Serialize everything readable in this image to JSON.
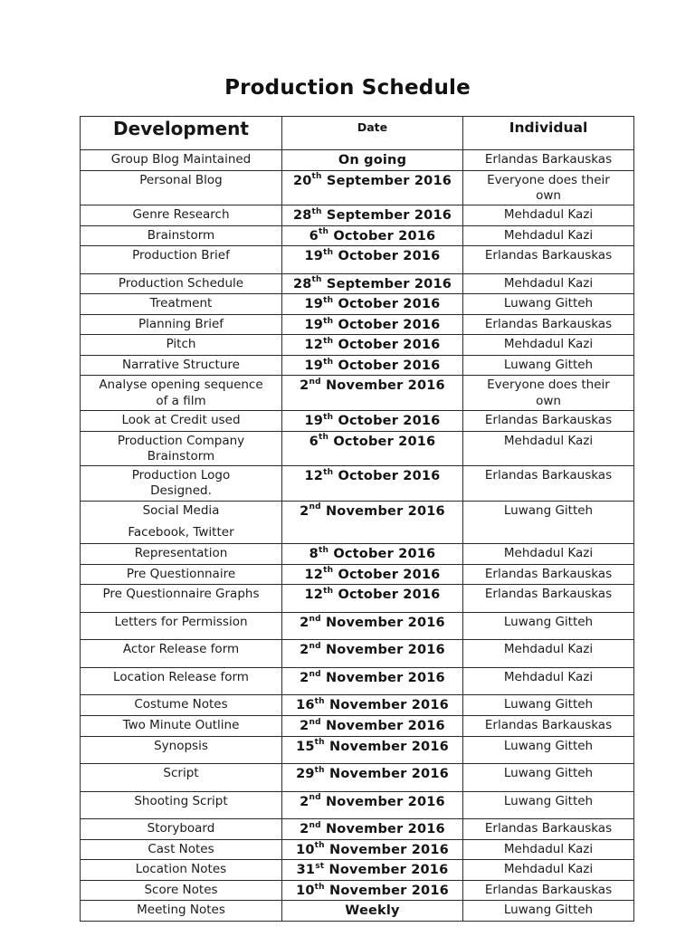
{
  "page_title": "Production Schedule",
  "colors": {
    "text": "#1b1b1b",
    "border": "#2b2b2b",
    "background": "#ffffff"
  },
  "table": {
    "columns": [
      {
        "label": "Development"
      },
      {
        "label": "Date"
      },
      {
        "label": "Individual"
      }
    ],
    "rows": [
      {
        "development": [
          "Group Blog Maintained"
        ],
        "date": {
          "text": "On going"
        },
        "individual": [
          "Erlandas Barkauskas"
        ]
      },
      {
        "development": [
          "Personal Blog"
        ],
        "date": {
          "day": "20",
          "ord": "th",
          "rest": " September 2016"
        },
        "individual": [
          "Everyone does their",
          "own"
        ]
      },
      {
        "development": [
          "Genre Research"
        ],
        "date": {
          "day": "28",
          "ord": "th",
          "rest": " September 2016"
        },
        "individual": [
          "Mehdadul Kazi"
        ]
      },
      {
        "development": [
          "Brainstorm"
        ],
        "date": {
          "day": "6",
          "ord": "th",
          "rest": " October 2016"
        },
        "individual": [
          "Mehdadul Kazi"
        ]
      },
      {
        "development": [
          "Production Brief"
        ],
        "date": {
          "day": "19",
          "ord": "th",
          "rest": " October 2016"
        },
        "individual": [
          "Erlandas Barkauskas"
        ],
        "spacer": true
      },
      {
        "development": [
          "Production Schedule"
        ],
        "date": {
          "day": "28",
          "ord": "th",
          "rest": " September 2016"
        },
        "individual": [
          "Mehdadul Kazi"
        ]
      },
      {
        "development": [
          "Treatment"
        ],
        "date": {
          "day": "19",
          "ord": "th",
          "rest": " October 2016"
        },
        "individual": [
          "Luwang Gitteh"
        ]
      },
      {
        "development": [
          "Planning Brief"
        ],
        "date": {
          "day": "19",
          "ord": "th",
          "rest": " October 2016"
        },
        "individual": [
          "Erlandas Barkauskas"
        ]
      },
      {
        "development": [
          "Pitch"
        ],
        "date": {
          "day": "12",
          "ord": "th",
          "rest": " October 2016"
        },
        "individual": [
          "Mehdadul Kazi"
        ]
      },
      {
        "development": [
          "Narrative Structure"
        ],
        "date": {
          "day": "19",
          "ord": "th",
          "rest": " October 2016"
        },
        "individual": [
          "Luwang Gitteh"
        ]
      },
      {
        "development": [
          "Analyse opening sequence",
          "of a film"
        ],
        "date": {
          "day": "2",
          "ord": "nd",
          "rest": " November 2016"
        },
        "individual": [
          "Everyone does their",
          "own"
        ]
      },
      {
        "development": [
          "Look at Credit used"
        ],
        "date": {
          "day": "19",
          "ord": "th",
          "rest": " October 2016"
        },
        "individual": [
          "Erlandas Barkauskas"
        ]
      },
      {
        "development": [
          "Production Company",
          "Brainstorm"
        ],
        "date": {
          "day": "6",
          "ord": "th",
          "rest": " October 2016"
        },
        "individual": [
          "Mehdadul Kazi"
        ]
      },
      {
        "development": [
          "Production Logo",
          "Designed."
        ],
        "date": {
          "day": "12",
          "ord": "th",
          "rest": " October 2016"
        },
        "individual": [
          "Erlandas Barkauskas"
        ]
      },
      {
        "development": [
          "Social Media",
          "Facebook, Twitter"
        ],
        "date": {
          "day": "2",
          "ord": "nd",
          "rest": " November 2016"
        },
        "individual": [
          "Luwang Gitteh"
        ],
        "loose": true
      },
      {
        "development": [
          "Representation"
        ],
        "date": {
          "day": "8",
          "ord": "th",
          "rest": " October 2016"
        },
        "individual": [
          "Mehdadul Kazi"
        ]
      },
      {
        "development": [
          "Pre Questionnaire"
        ],
        "date": {
          "day": "12",
          "ord": "th",
          "rest": " October 2016"
        },
        "individual": [
          "Erlandas Barkauskas"
        ]
      },
      {
        "development": [
          "Pre Questionnaire Graphs"
        ],
        "date": {
          "day": "12",
          "ord": "th",
          "rest": " October 2016"
        },
        "individual": [
          "Erlandas Barkauskas"
        ],
        "spacer": true
      },
      {
        "development": [
          "Letters for Permission"
        ],
        "date": {
          "day": "2",
          "ord": "nd",
          "rest": " November 2016"
        },
        "individual": [
          "Luwang Gitteh"
        ],
        "spacer": true
      },
      {
        "development": [
          "Actor Release form"
        ],
        "date": {
          "day": "2",
          "ord": "nd",
          "rest": " November 2016"
        },
        "individual": [
          "Mehdadul Kazi"
        ],
        "spacer": true
      },
      {
        "development": [
          "Location Release form"
        ],
        "date": {
          "day": "2",
          "ord": "nd",
          "rest": " November 2016"
        },
        "individual": [
          "Mehdadul Kazi"
        ],
        "spacer": true
      },
      {
        "development": [
          "Costume Notes"
        ],
        "date": {
          "day": "16",
          "ord": "th",
          "rest": " November 2016"
        },
        "individual": [
          "Luwang Gitteh"
        ]
      },
      {
        "development": [
          "Two Minute Outline"
        ],
        "date": {
          "day": "2",
          "ord": "nd",
          "rest": " November 2016"
        },
        "individual": [
          "Erlandas Barkauskas"
        ]
      },
      {
        "development": [
          "Synopsis"
        ],
        "date": {
          "day": "15",
          "ord": "th",
          "rest": " November 2016"
        },
        "individual": [
          "Luwang Gitteh"
        ],
        "spacer": true
      },
      {
        "development": [
          "Script"
        ],
        "date": {
          "day": "29",
          "ord": "th",
          "rest": " November 2016"
        },
        "individual": [
          "Luwang Gitteh"
        ],
        "spacer": true
      },
      {
        "development": [
          "Shooting Script"
        ],
        "date": {
          "day": "2",
          "ord": "nd",
          "rest": " November 2016"
        },
        "individual": [
          "Luwang Gitteh"
        ],
        "spacer": true
      },
      {
        "development": [
          "Storyboard"
        ],
        "date": {
          "day": "2",
          "ord": "nd",
          "rest": " November 2016"
        },
        "individual": [
          "Erlandas Barkauskas"
        ]
      },
      {
        "development": [
          "Cast Notes"
        ],
        "date": {
          "day": "10",
          "ord": "th",
          "rest": " November 2016"
        },
        "individual": [
          "Mehdadul Kazi"
        ]
      },
      {
        "development": [
          "Location Notes"
        ],
        "date": {
          "day": "31",
          "ord": "st",
          "rest": " November 2016"
        },
        "individual": [
          "Mehdadul Kazi"
        ]
      },
      {
        "development": [
          "Score Notes"
        ],
        "date": {
          "day": "10",
          "ord": "th",
          "rest": " November 2016"
        },
        "individual": [
          "Erlandas Barkauskas"
        ]
      },
      {
        "development": [
          "Meeting Notes"
        ],
        "date": {
          "text": "Weekly"
        },
        "individual": [
          "Luwang Gitteh"
        ]
      }
    ]
  }
}
